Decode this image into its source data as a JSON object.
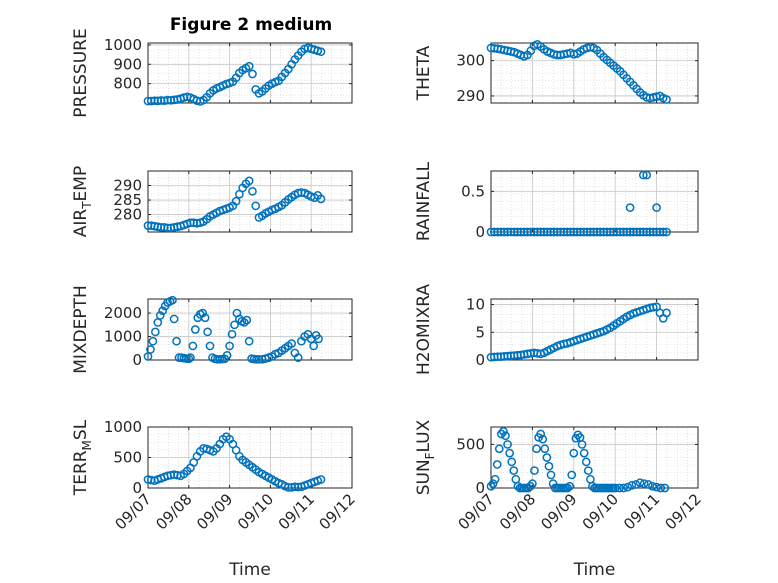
{
  "figure_title": "Figure 2 medium",
  "colors": {
    "marker": "#0072BD",
    "axis": "#262626",
    "grid": "#d0d0d0"
  },
  "chart_data": [
    {
      "type": "scatter",
      "ylabel": "PRESSURE",
      "ylabel_main": "PRESSURE",
      "ylabel_sub": "",
      "ylabel_tail": "",
      "xlim": [
        0,
        5
      ],
      "ylim": [
        700,
        1010
      ],
      "yticks": [
        800,
        900,
        1000
      ],
      "x": [
        0,
        0.08,
        0.16,
        0.24,
        0.32,
        0.4,
        0.48,
        0.56,
        0.64,
        0.72,
        0.8,
        0.88,
        0.96,
        1.04,
        1.12,
        1.2,
        1.28,
        1.36,
        1.44,
        1.52,
        1.6,
        1.68,
        1.76,
        1.84,
        1.92,
        2.0,
        2.08,
        2.16,
        2.24,
        2.32,
        2.4,
        2.48,
        2.56,
        2.64,
        2.72,
        2.8,
        2.88,
        2.96,
        3.04,
        3.12,
        3.2,
        3.28,
        3.36,
        3.44,
        3.52,
        3.6,
        3.68,
        3.76,
        3.84,
        3.92,
        4.0,
        4.08,
        4.16,
        4.24
      ],
      "y": [
        710,
        710,
        712,
        711,
        713,
        712,
        715,
        714,
        716,
        718,
        722,
        728,
        732,
        728,
        720,
        712,
        708,
        715,
        730,
        750,
        765,
        775,
        782,
        790,
        798,
        803,
        810,
        830,
        855,
        870,
        880,
        890,
        850,
        770,
        750,
        760,
        775,
        790,
        800,
        808,
        815,
        835,
        855,
        875,
        900,
        925,
        945,
        965,
        980,
        985,
        980,
        975,
        970,
        965
      ]
    },
    {
      "type": "scatter",
      "ylabel": "THETA",
      "ylabel_main": "THETA",
      "ylabel_sub": "",
      "ylabel_tail": "",
      "xlim": [
        0,
        5
      ],
      "ylim": [
        288,
        305
      ],
      "yticks": [
        290,
        300
      ],
      "x": [
        0,
        0.08,
        0.16,
        0.24,
        0.32,
        0.4,
        0.48,
        0.56,
        0.64,
        0.72,
        0.8,
        0.88,
        0.96,
        1.04,
        1.12,
        1.2,
        1.28,
        1.36,
        1.44,
        1.52,
        1.6,
        1.68,
        1.76,
        1.84,
        1.92,
        2.0,
        2.08,
        2.16,
        2.24,
        2.32,
        2.4,
        2.48,
        2.56,
        2.64,
        2.72,
        2.8,
        2.88,
        2.96,
        3.04,
        3.12,
        3.2,
        3.28,
        3.36,
        3.44,
        3.52,
        3.6,
        3.68,
        3.76,
        3.84,
        3.92,
        4.0,
        4.08,
        4.16,
        4.24
      ],
      "y": [
        303.6,
        303.5,
        303.4,
        303.2,
        303.0,
        302.8,
        302.6,
        302.4,
        302.0,
        301.6,
        301.2,
        301.6,
        302.8,
        304.2,
        304.6,
        304.0,
        303.2,
        302.6,
        302.2,
        301.8,
        301.6,
        301.6,
        301.8,
        302.0,
        302.2,
        301.8,
        302.0,
        302.6,
        303.2,
        303.6,
        303.8,
        303.6,
        303.0,
        302.0,
        301.0,
        300.2,
        299.4,
        298.6,
        297.8,
        297.0,
        296.0,
        295.0,
        294.0,
        293.0,
        292.0,
        291.0,
        290.2,
        289.6,
        289.4,
        289.6,
        289.8,
        290.0,
        289.4,
        289.0
      ]
    },
    {
      "type": "scatter",
      "ylabel": "AIR_TEMP",
      "ylabel_main": "AIR",
      "ylabel_sub": "T",
      "ylabel_tail": "EMP",
      "xlim": [
        0,
        5
      ],
      "ylim": [
        274,
        295
      ],
      "yticks": [
        280,
        285,
        290
      ],
      "x": [
        0,
        0.08,
        0.16,
        0.24,
        0.32,
        0.4,
        0.48,
        0.56,
        0.64,
        0.72,
        0.8,
        0.88,
        0.96,
        1.04,
        1.12,
        1.2,
        1.28,
        1.36,
        1.44,
        1.52,
        1.6,
        1.68,
        1.76,
        1.84,
        1.92,
        2.0,
        2.08,
        2.16,
        2.24,
        2.32,
        2.4,
        2.48,
        2.56,
        2.64,
        2.72,
        2.8,
        2.88,
        2.96,
        3.04,
        3.12,
        3.2,
        3.28,
        3.36,
        3.44,
        3.52,
        3.6,
        3.68,
        3.76,
        3.84,
        3.92,
        4.0,
        4.08,
        4.16,
        4.24
      ],
      "y": [
        276.2,
        276.2,
        276.0,
        275.8,
        275.6,
        275.6,
        275.4,
        275.4,
        275.6,
        275.8,
        276.0,
        276.4,
        276.8,
        277.2,
        277.2,
        277.0,
        277.2,
        277.6,
        278.4,
        279.4,
        280.0,
        280.6,
        281.2,
        281.6,
        282.0,
        282.4,
        283.0,
        284.6,
        287.0,
        289.2,
        290.6,
        291.6,
        288.0,
        283.0,
        279.0,
        279.6,
        280.4,
        281.0,
        281.6,
        282.0,
        282.6,
        283.2,
        284.2,
        285.2,
        286.0,
        286.8,
        287.4,
        287.6,
        287.4,
        286.8,
        286.2,
        285.8,
        286.6,
        285.4
      ]
    },
    {
      "type": "scatter",
      "ylabel": "RAINFALL",
      "ylabel_main": "RAINFALL",
      "ylabel_sub": "",
      "ylabel_tail": "",
      "xlim": [
        0,
        5
      ],
      "ylim": [
        0,
        0.75
      ],
      "yticks": [
        0,
        0.5
      ],
      "x": [
        0,
        0.08,
        0.16,
        0.24,
        0.32,
        0.4,
        0.48,
        0.56,
        0.64,
        0.72,
        0.8,
        0.88,
        0.96,
        1.04,
        1.12,
        1.2,
        1.28,
        1.36,
        1.44,
        1.52,
        1.6,
        1.68,
        1.76,
        1.84,
        1.92,
        2.0,
        2.08,
        2.16,
        2.24,
        2.32,
        2.4,
        2.48,
        2.56,
        2.64,
        2.72,
        2.8,
        2.88,
        2.96,
        3.04,
        3.12,
        3.2,
        3.28,
        3.36,
        3.44,
        3.52,
        3.6,
        3.68,
        3.76,
        3.84,
        3.92,
        4.0,
        4.08,
        4.16,
        4.24,
        3.36,
        3.68,
        3.76,
        4.0
      ],
      "y": [
        0,
        0,
        0,
        0,
        0,
        0,
        0,
        0,
        0,
        0,
        0,
        0,
        0,
        0,
        0,
        0,
        0,
        0,
        0,
        0,
        0,
        0,
        0,
        0,
        0,
        0,
        0,
        0,
        0,
        0,
        0,
        0,
        0,
        0,
        0,
        0,
        0,
        0,
        0,
        0,
        0,
        0,
        0,
        0,
        0,
        0,
        0,
        0,
        0,
        0,
        0,
        0,
        0,
        0,
        0.3,
        0.7,
        0.7,
        0.3
      ]
    },
    {
      "type": "scatter",
      "ylabel": "MIXDEPTH",
      "ylabel_main": "MIXDEPTH",
      "ylabel_sub": "",
      "ylabel_tail": "",
      "xlim": [
        0,
        5
      ],
      "ylim": [
        0,
        2600
      ],
      "yticks": [
        0,
        1000,
        2000
      ],
      "x": [
        0,
        0.06,
        0.12,
        0.18,
        0.24,
        0.3,
        0.36,
        0.42,
        0.48,
        0.54,
        0.6,
        0.64,
        0.7,
        0.76,
        0.82,
        0.88,
        0.94,
        1.0,
        1.04,
        1.1,
        1.16,
        1.22,
        1.28,
        1.34,
        1.4,
        1.46,
        1.52,
        1.58,
        1.64,
        1.7,
        1.76,
        1.82,
        1.88,
        1.94,
        2.0,
        2.06,
        2.12,
        2.18,
        2.24,
        2.3,
        2.36,
        2.42,
        2.48,
        2.54,
        2.6,
        2.66,
        2.72,
        2.8,
        2.88,
        2.96,
        3.04,
        3.12,
        3.2,
        3.28,
        3.36,
        3.44,
        3.52,
        3.6,
        3.68,
        3.76,
        3.84,
        3.92,
        4.0,
        4.06,
        4.12,
        4.18
      ],
      "y": [
        150,
        450,
        800,
        1200,
        1600,
        1900,
        2100,
        2300,
        2450,
        2500,
        2550,
        1750,
        800,
        100,
        100,
        80,
        60,
        50,
        100,
        600,
        1300,
        1800,
        1950,
        2000,
        1800,
        1200,
        600,
        100,
        50,
        30,
        30,
        40,
        50,
        200,
        600,
        1100,
        1500,
        2000,
        1750,
        1650,
        1600,
        1700,
        800,
        60,
        40,
        30,
        30,
        30,
        60,
        100,
        150,
        250,
        300,
        400,
        500,
        600,
        700,
        300,
        100,
        800,
        1000,
        1100,
        900,
        600,
        1050,
        900
      ]
    },
    {
      "type": "scatter",
      "ylabel": "H2OMIXRA",
      "ylabel_main": "H2OMIXRA",
      "ylabel_sub": "",
      "ylabel_tail": "",
      "xlim": [
        0,
        5
      ],
      "ylim": [
        0,
        11
      ],
      "yticks": [
        0,
        5,
        10
      ],
      "x": [
        0,
        0.08,
        0.16,
        0.24,
        0.32,
        0.4,
        0.48,
        0.56,
        0.64,
        0.72,
        0.8,
        0.88,
        0.96,
        1.04,
        1.12,
        1.2,
        1.28,
        1.36,
        1.44,
        1.52,
        1.6,
        1.68,
        1.76,
        1.84,
        1.92,
        2.0,
        2.08,
        2.16,
        2.24,
        2.32,
        2.4,
        2.48,
        2.56,
        2.64,
        2.72,
        2.8,
        2.88,
        2.96,
        3.04,
        3.12,
        3.2,
        3.28,
        3.36,
        3.44,
        3.52,
        3.6,
        3.68,
        3.76,
        3.84,
        3.92,
        4.0,
        4.08,
        4.16,
        4.24
      ],
      "y": [
        0.5,
        0.55,
        0.6,
        0.6,
        0.65,
        0.7,
        0.75,
        0.8,
        0.85,
        0.9,
        1.0,
        1.1,
        1.2,
        1.3,
        1.2,
        1.1,
        1.3,
        1.6,
        1.9,
        2.2,
        2.5,
        2.7,
        2.9,
        3.0,
        3.2,
        3.4,
        3.6,
        3.8,
        4.0,
        4.2,
        4.4,
        4.6,
        4.8,
        5.0,
        5.2,
        5.5,
        5.8,
        6.2,
        6.6,
        7.0,
        7.4,
        7.8,
        8.1,
        8.4,
        8.6,
        8.8,
        9.0,
        9.2,
        9.4,
        9.5,
        9.6,
        8.5,
        7.5,
        8.5
      ]
    },
    {
      "type": "scatter",
      "ylabel": "TERR_MSL",
      "ylabel_main": "TERR",
      "ylabel_sub": "M",
      "ylabel_tail": "SL",
      "xlim": [
        0,
        5
      ],
      "ylim": [
        0,
        1000
      ],
      "yticks": [
        0,
        500,
        1000
      ],
      "x": [
        0,
        0.08,
        0.16,
        0.24,
        0.32,
        0.4,
        0.48,
        0.56,
        0.64,
        0.72,
        0.8,
        0.88,
        0.96,
        1.04,
        1.12,
        1.2,
        1.28,
        1.36,
        1.44,
        1.52,
        1.6,
        1.68,
        1.76,
        1.84,
        1.92,
        2.0,
        2.08,
        2.16,
        2.24,
        2.32,
        2.4,
        2.48,
        2.56,
        2.64,
        2.72,
        2.8,
        2.88,
        2.96,
        3.04,
        3.12,
        3.2,
        3.28,
        3.36,
        3.44,
        3.52,
        3.6,
        3.68,
        3.76,
        3.84,
        3.92,
        4.0,
        4.08,
        4.16,
        4.24
      ],
      "y": [
        140,
        130,
        120,
        140,
        160,
        180,
        200,
        210,
        220,
        210,
        200,
        230,
        280,
        330,
        420,
        520,
        600,
        650,
        640,
        620,
        600,
        650,
        720,
        800,
        840,
        800,
        720,
        620,
        520,
        460,
        420,
        380,
        340,
        300,
        260,
        230,
        200,
        170,
        140,
        110,
        80,
        60,
        30,
        10,
        10,
        20,
        15,
        20,
        40,
        60,
        80,
        100,
        120,
        140
      ]
    },
    {
      "type": "scatter",
      "ylabel": "SUN_FLUX",
      "ylabel_main": "SUN",
      "ylabel_sub": "F",
      "ylabel_tail": "LUX",
      "xlim": [
        0,
        5
      ],
      "ylim": [
        0,
        700
      ],
      "yticks": [
        0,
        500
      ],
      "xticklabels": [
        "09/07",
        "09/08",
        "09/09",
        "09/10",
        "09/11",
        "09/12"
      ],
      "xlabel": "Time",
      "x": [
        0,
        0.05,
        0.1,
        0.15,
        0.2,
        0.25,
        0.3,
        0.35,
        0.4,
        0.45,
        0.5,
        0.55,
        0.6,
        0.65,
        0.7,
        0.75,
        0.8,
        0.85,
        0.9,
        0.95,
        1.0,
        1.05,
        1.1,
        1.15,
        1.2,
        1.25,
        1.3,
        1.35,
        1.4,
        1.45,
        1.5,
        1.55,
        1.6,
        1.65,
        1.7,
        1.75,
        1.8,
        1.85,
        1.9,
        1.95,
        2.0,
        2.05,
        2.1,
        2.15,
        2.2,
        2.25,
        2.3,
        2.35,
        2.4,
        2.45,
        2.5,
        2.55,
        2.6,
        2.65,
        2.7,
        2.75,
        2.8,
        2.85,
        2.9,
        2.95,
        3.0,
        3.1,
        3.2,
        3.3,
        3.4,
        3.5,
        3.6,
        3.7,
        3.8,
        3.9,
        4.0,
        4.1,
        4.2
      ],
      "y": [
        20,
        50,
        100,
        270,
        450,
        620,
        650,
        600,
        500,
        400,
        300,
        200,
        100,
        20,
        0,
        0,
        0,
        0,
        0,
        20,
        50,
        200,
        450,
        580,
        620,
        560,
        450,
        350,
        250,
        150,
        50,
        0,
        0,
        0,
        0,
        0,
        0,
        0,
        20,
        150,
        400,
        570,
        610,
        580,
        500,
        400,
        300,
        200,
        100,
        20,
        0,
        0,
        0,
        0,
        0,
        0,
        0,
        0,
        0,
        0,
        0,
        0,
        0,
        10,
        30,
        40,
        60,
        50,
        40,
        20,
        10,
        0,
        0
      ]
    }
  ]
}
